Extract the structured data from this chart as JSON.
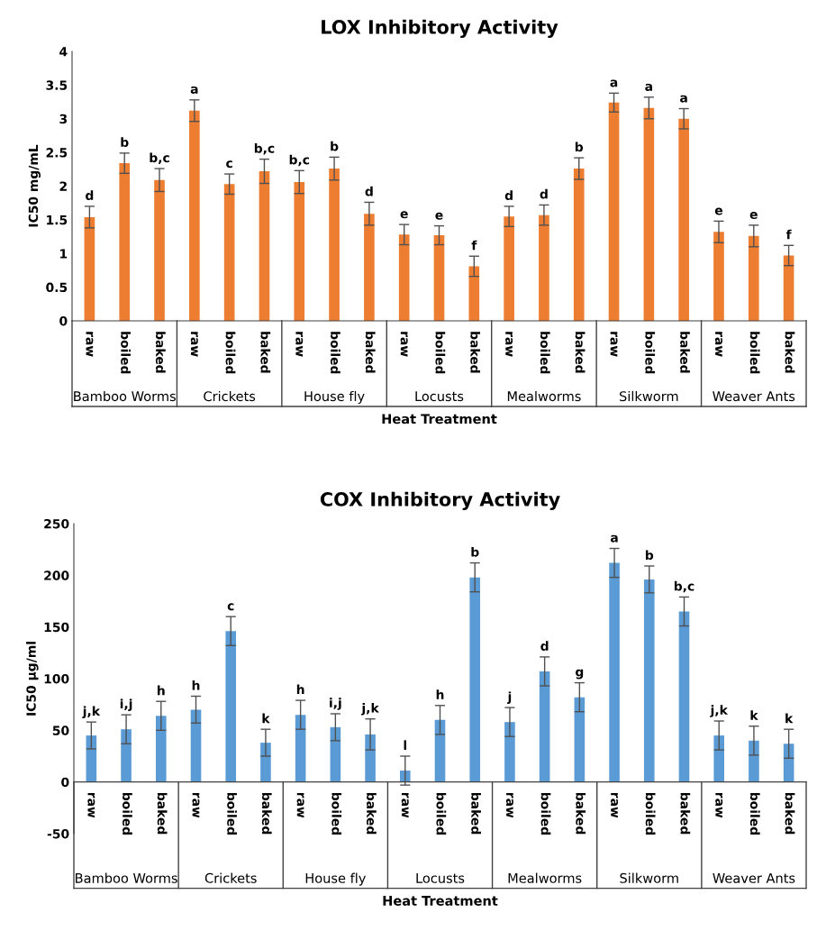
{
  "chart_data": [
    {
      "type": "bar",
      "title": "LOX Inhibitory Activity",
      "xlabel": "Heat Treatment",
      "ylabel": "IC50 mg/mL",
      "color": "#ed7d31",
      "categories": [
        "raw",
        "boiled",
        "baked",
        "raw",
        "boiled",
        "baked",
        "raw",
        "boiled",
        "baked",
        "raw",
        "boiled",
        "baked",
        "raw",
        "boiled",
        "baked",
        "raw",
        "boiled",
        "baked",
        "raw",
        "boiled",
        "baked"
      ],
      "values": [
        1.54,
        2.34,
        2.09,
        3.12,
        2.03,
        2.22,
        2.06,
        2.26,
        1.59,
        1.28,
        1.27,
        0.81,
        1.55,
        1.57,
        2.26,
        3.24,
        3.16,
        3.0,
        1.32,
        1.26,
        0.97
      ],
      "errors": [
        0.16,
        0.15,
        0.17,
        0.16,
        0.15,
        0.18,
        0.17,
        0.17,
        0.17,
        0.15,
        0.14,
        0.15,
        0.15,
        0.15,
        0.16,
        0.14,
        0.16,
        0.15,
        0.16,
        0.16,
        0.15
      ],
      "value_labels": [
        "d",
        "b",
        "b,c",
        "a",
        "c",
        "b,c",
        "b,c",
        "b",
        "d",
        "e",
        "e",
        "f",
        "d",
        "d",
        "b",
        "a",
        "a",
        "a",
        "e",
        "e",
        "f"
      ],
      "annotations": [
        "Bamboo Worms",
        "Crickets",
        "House fly",
        "Locusts",
        "Mealworms",
        "Silkworm",
        "Weaver Ants"
      ],
      "ylim": [
        0,
        4
      ],
      "yticks": [
        0,
        0.5,
        1,
        1.5,
        2,
        2.5,
        3,
        3.5,
        4
      ]
    },
    {
      "type": "bar",
      "title": "COX Inhibitory Activity",
      "xlabel": "Heat Treatment",
      "ylabel": "IC50 µg/ml",
      "color": "#5b9bd5",
      "categories": [
        "raw",
        "boiled",
        "baked",
        "raw",
        "boiled",
        "baked",
        "raw",
        "boiled",
        "baked",
        "raw",
        "boiled",
        "baked",
        "raw",
        "boiled",
        "baked",
        "raw",
        "boiled",
        "baked",
        "raw",
        "boiled",
        "baked"
      ],
      "values": [
        45,
        51,
        64,
        70,
        146,
        38,
        65,
        53,
        46,
        11,
        60,
        198,
        58,
        107,
        82,
        212,
        196,
        165,
        45,
        40,
        37
      ],
      "errors": [
        13,
        14,
        14,
        13,
        14,
        13,
        14,
        13,
        15,
        14,
        14,
        14,
        14,
        14,
        14,
        14,
        13,
        14,
        14,
        14,
        14
      ],
      "value_labels": [
        "j,k",
        "i,j",
        "h",
        "h",
        "c",
        "k",
        "h",
        "i,j",
        "j,k",
        "l",
        "h",
        "b",
        "j",
        "d",
        "g",
        "a",
        "b",
        "b,c",
        "j,k",
        "k",
        "k"
      ],
      "annotations": [
        "Bamboo Worms",
        "Crickets",
        "House fly",
        "Locusts",
        "Mealworms",
        "Silkworm",
        "Weaver Ants"
      ],
      "ylim": [
        -50,
        250
      ],
      "yticks": [
        -50,
        0,
        50,
        100,
        150,
        200,
        250
      ]
    }
  ]
}
